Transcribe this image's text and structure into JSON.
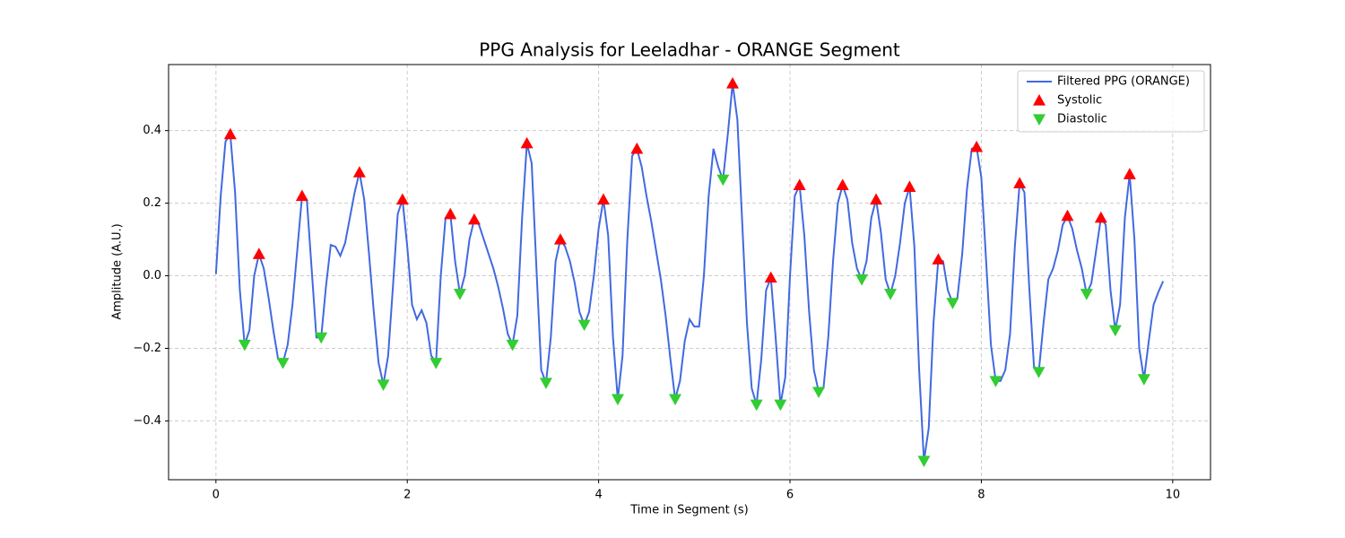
{
  "chart_data": {
    "type": "line",
    "title": "PPG Analysis for Leeladhar - ORANGE Segment",
    "xlabel": "Time in Segment (s)",
    "ylabel": "Amplitude (A.U.)",
    "xlim": [
      -0.495,
      10.395
    ],
    "ylim": [
      -0.562,
      0.582
    ],
    "xticks": [
      0,
      2,
      4,
      6,
      8,
      10
    ],
    "yticks": [
      {
        "value": -0.4,
        "label": "−0.4"
      },
      {
        "value": -0.2,
        "label": "−0.2"
      },
      {
        "value": 0,
        "label": "0.0"
      },
      0.2,
      0.4
    ],
    "grid": true,
    "legend": "upper right",
    "series": [
      {
        "name": "Filtered PPG (ORANGE)",
        "type": "line",
        "color": "#4169e1",
        "x": [
          0,
          0.05,
          0.1,
          0.15,
          0.2,
          0.25,
          0.3,
          0.35,
          0.4,
          0.45,
          0.5,
          0.55,
          0.6,
          0.65,
          0.7,
          0.75,
          0.8,
          0.85,
          0.9,
          0.95,
          1.0,
          1.05,
          1.1,
          1.15,
          1.2,
          1.25,
          1.3,
          1.35,
          1.4,
          1.45,
          1.5,
          1.55,
          1.6,
          1.65,
          1.7,
          1.75,
          1.8,
          1.85,
          1.9,
          1.95,
          2.0,
          2.05,
          2.1,
          2.15,
          2.2,
          2.25,
          2.3,
          2.35,
          2.4,
          2.45,
          2.5,
          2.55,
          2.6,
          2.65,
          2.7,
          2.75,
          2.8,
          2.85,
          2.9,
          2.95,
          3.0,
          3.05,
          3.1,
          3.15,
          3.2,
          3.25,
          3.3,
          3.35,
          3.4,
          3.45,
          3.5,
          3.55,
          3.6,
          3.65,
          3.7,
          3.75,
          3.8,
          3.85,
          3.9,
          3.95,
          4.0,
          4.05,
          4.1,
          4.15,
          4.2,
          4.25,
          4.3,
          4.35,
          4.4,
          4.45,
          4.5,
          4.55,
          4.6,
          4.65,
          4.7,
          4.75,
          4.8,
          4.85,
          4.9,
          4.95,
          5.0,
          5.05,
          5.1,
          5.15,
          5.2,
          5.25,
          5.3,
          5.35,
          5.4,
          5.45,
          5.5,
          5.55,
          5.6,
          5.65,
          5.7,
          5.75,
          5.8,
          5.85,
          5.9,
          5.95,
          6.0,
          6.05,
          6.1,
          6.15,
          6.2,
          6.25,
          6.3,
          6.35,
          6.4,
          6.45,
          6.5,
          6.55,
          6.6,
          6.65,
          6.7,
          6.75,
          6.8,
          6.85,
          6.9,
          6.95,
          7.0,
          7.05,
          7.1,
          7.15,
          7.2,
          7.25,
          7.3,
          7.35,
          7.4,
          7.45,
          7.5,
          7.55,
          7.6,
          7.65,
          7.7,
          7.75,
          7.8,
          7.85,
          7.9,
          7.95,
          8.0,
          8.05,
          8.1,
          8.15,
          8.2,
          8.25,
          8.3,
          8.35,
          8.4,
          8.45,
          8.5,
          8.55,
          8.6,
          8.65,
          8.7,
          8.75,
          8.8,
          8.85,
          8.9,
          8.95,
          9.0,
          9.05,
          9.1,
          9.15,
          9.2,
          9.25,
          9.3,
          9.35,
          9.4,
          9.45,
          9.5,
          9.55,
          9.6,
          9.65,
          9.7,
          9.75,
          9.8,
          9.85,
          9.9
        ],
        "values": [
          0.005,
          0.22,
          0.37,
          0.39,
          0.23,
          -0.04,
          -0.19,
          -0.15,
          0.0,
          0.06,
          0.02,
          -0.06,
          -0.15,
          -0.23,
          -0.24,
          -0.19,
          -0.08,
          0.07,
          0.22,
          0.21,
          0.02,
          -0.17,
          -0.17,
          -0.03,
          0.085,
          0.08,
          0.055,
          0.09,
          0.16,
          0.23,
          0.285,
          0.21,
          0.06,
          -0.1,
          -0.24,
          -0.3,
          -0.22,
          -0.03,
          0.17,
          0.21,
          0.08,
          -0.08,
          -0.12,
          -0.095,
          -0.13,
          -0.22,
          -0.24,
          0.0,
          0.16,
          0.17,
          0.04,
          -0.05,
          0.0,
          0.1,
          0.155,
          0.14,
          0.1,
          0.06,
          0.02,
          -0.03,
          -0.09,
          -0.16,
          -0.19,
          -0.11,
          0.16,
          0.365,
          0.31,
          0.02,
          -0.26,
          -0.295,
          -0.17,
          0.04,
          0.1,
          0.08,
          0.04,
          -0.02,
          -0.1,
          -0.135,
          -0.1,
          0.0,
          0.13,
          0.21,
          0.11,
          -0.17,
          -0.34,
          -0.22,
          0.1,
          0.33,
          0.35,
          0.3,
          0.22,
          0.15,
          0.07,
          -0.01,
          -0.11,
          -0.23,
          -0.34,
          -0.29,
          -0.18,
          -0.12,
          -0.14,
          -0.14,
          0.0,
          0.22,
          0.35,
          0.3,
          0.265,
          0.39,
          0.53,
          0.43,
          0.15,
          -0.13,
          -0.31,
          -0.355,
          -0.23,
          -0.04,
          -0.005,
          -0.17,
          -0.355,
          -0.28,
          0.0,
          0.22,
          0.25,
          0.11,
          -0.1,
          -0.26,
          -0.32,
          -0.31,
          -0.17,
          0.04,
          0.2,
          0.25,
          0.21,
          0.09,
          0.02,
          -0.01,
          0.04,
          0.16,
          0.21,
          0.12,
          -0.01,
          -0.05,
          0.0,
          0.09,
          0.2,
          0.245,
          0.08,
          -0.26,
          -0.51,
          -0.42,
          -0.13,
          0.045,
          0.04,
          -0.04,
          -0.075,
          -0.06,
          0.06,
          0.24,
          0.35,
          0.355,
          0.27,
          0.04,
          -0.19,
          -0.29,
          -0.29,
          -0.26,
          -0.16,
          0.08,
          0.255,
          0.23,
          -0.03,
          -0.25,
          -0.265,
          -0.13,
          -0.01,
          0.02,
          0.07,
          0.14,
          0.165,
          0.13,
          0.07,
          0.02,
          -0.05,
          -0.02,
          0.07,
          0.16,
          0.14,
          -0.04,
          -0.15,
          -0.08,
          0.16,
          0.28,
          0.1,
          -0.2,
          -0.285,
          -0.18,
          -0.08,
          -0.045,
          -0.015
        ]
      },
      {
        "name": "Systolic",
        "type": "scatter",
        "marker": "triangle-up",
        "color": "#ff0000",
        "x": [
          0.15,
          0.45,
          0.9,
          1.5,
          1.95,
          2.45,
          2.7,
          3.25,
          3.6,
          4.05,
          4.4,
          5.4,
          5.8,
          6.1,
          6.55,
          6.9,
          7.25,
          7.55,
          7.95,
          8.4,
          8.9,
          9.25,
          9.55
        ],
        "values": [
          0.39,
          0.06,
          0.22,
          0.285,
          0.21,
          0.17,
          0.155,
          0.365,
          0.1,
          0.21,
          0.35,
          0.53,
          -0.005,
          0.25,
          0.25,
          0.21,
          0.245,
          0.045,
          0.355,
          0.255,
          0.165,
          0.16,
          0.28
        ]
      },
      {
        "name": "Diastolic",
        "type": "scatter",
        "marker": "triangle-down",
        "color": "#32cd32",
        "x": [
          0.3,
          0.7,
          1.1,
          1.75,
          2.3,
          2.55,
          3.1,
          3.45,
          3.85,
          4.2,
          4.8,
          5.3,
          5.65,
          5.9,
          6.3,
          6.75,
          7.05,
          7.4,
          7.7,
          8.15,
          8.6,
          9.1,
          9.4,
          9.7
        ],
        "values": [
          -0.19,
          -0.24,
          -0.17,
          -0.3,
          -0.24,
          -0.05,
          -0.19,
          -0.295,
          -0.135,
          -0.34,
          -0.34,
          0.265,
          -0.355,
          -0.355,
          -0.32,
          -0.01,
          -0.05,
          -0.51,
          -0.075,
          -0.29,
          -0.265,
          -0.05,
          -0.15,
          -0.285
        ]
      }
    ]
  }
}
